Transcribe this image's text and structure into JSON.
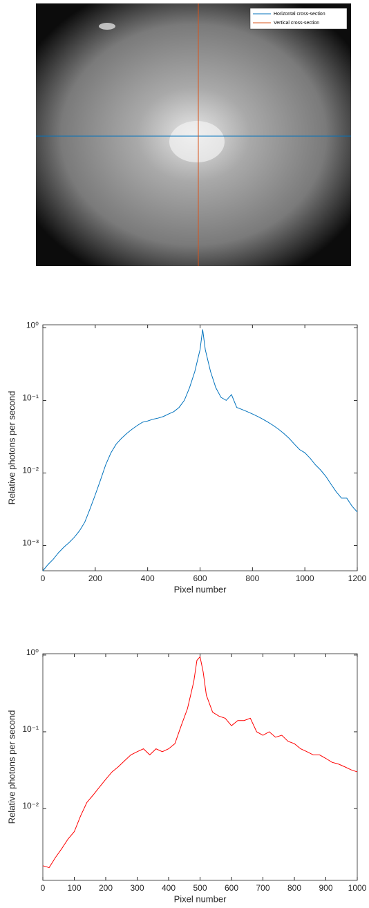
{
  "chart_data": [
    {
      "type": "image",
      "series": [
        {
          "name": "Horizontal cross-section",
          "color": "#0072bd"
        },
        {
          "name": "Vertical cross-section",
          "color": "#d95319"
        }
      ]
    },
    {
      "type": "line",
      "xlabel": "Pixel number",
      "ylabel": "Relative photons per second",
      "log_y": true,
      "xlim": [
        0,
        1200
      ],
      "xticks": [
        0,
        200,
        400,
        600,
        800,
        1000,
        1200
      ],
      "ylim": [
        0.00045,
        1.1
      ],
      "yticks": [
        {
          "value": 0.001,
          "label": "10⁻³"
        },
        {
          "value": 0.01,
          "label": "10⁻²"
        },
        {
          "value": 0.1,
          "label": "10⁻¹"
        },
        {
          "value": 1,
          "label": "10⁰"
        }
      ],
      "x": [
        0,
        20,
        40,
        60,
        80,
        100,
        120,
        140,
        160,
        180,
        200,
        220,
        240,
        260,
        280,
        300,
        320,
        340,
        360,
        380,
        400,
        420,
        440,
        460,
        480,
        500,
        520,
        540,
        560,
        580,
        600,
        610,
        620,
        640,
        660,
        680,
        700,
        720,
        740,
        760,
        780,
        800,
        820,
        840,
        860,
        880,
        900,
        920,
        940,
        960,
        980,
        1000,
        1020,
        1040,
        1060,
        1080,
        1100,
        1120,
        1140,
        1160,
        1180,
        1200
      ],
      "series": [
        {
          "color": "#0072bd",
          "values": [
            0.00045,
            0.00055,
            0.00065,
            0.0008,
            0.00095,
            0.0011,
            0.0013,
            0.0016,
            0.0021,
            0.0032,
            0.005,
            0.008,
            0.013,
            0.019,
            0.025,
            0.03,
            0.035,
            0.04,
            0.045,
            0.05,
            0.052,
            0.055,
            0.057,
            0.06,
            0.065,
            0.07,
            0.08,
            0.1,
            0.15,
            0.25,
            0.5,
            0.95,
            0.5,
            0.25,
            0.15,
            0.11,
            0.1,
            0.12,
            0.08,
            0.075,
            0.07,
            0.065,
            0.06,
            0.055,
            0.05,
            0.045,
            0.04,
            0.035,
            0.03,
            0.025,
            0.021,
            0.019,
            0.016,
            0.013,
            0.011,
            0.009,
            0.007,
            0.0055,
            0.0045,
            0.0045,
            0.0035,
            0.0029
          ]
        }
      ]
    },
    {
      "type": "line",
      "xlabel": "Pixel number",
      "ylabel": "Relative photons per second",
      "log_y": true,
      "xlim": [
        0,
        1000
      ],
      "xticks": [
        0,
        100,
        200,
        300,
        400,
        500,
        600,
        700,
        800,
        900,
        1000
      ],
      "ylim": [
        0.00116,
        1.04
      ],
      "yticks": [
        {
          "value": 0.01,
          "label": "10⁻²"
        },
        {
          "value": 0.1,
          "label": "10⁻¹"
        },
        {
          "value": 1,
          "label": "10⁰"
        }
      ],
      "x": [
        0,
        20,
        40,
        60,
        80,
        100,
        120,
        140,
        160,
        180,
        200,
        220,
        240,
        260,
        280,
        300,
        320,
        340,
        360,
        380,
        400,
        420,
        440,
        460,
        480,
        490,
        500,
        510,
        520,
        540,
        560,
        580,
        600,
        620,
        640,
        660,
        680,
        700,
        720,
        740,
        760,
        780,
        800,
        820,
        840,
        860,
        880,
        900,
        920,
        940,
        960,
        980,
        1000
      ],
      "series": [
        {
          "color": "#ff0000",
          "values": [
            0.0018,
            0.0017,
            0.0023,
            0.003,
            0.004,
            0.005,
            0.008,
            0.012,
            0.015,
            0.019,
            0.024,
            0.03,
            0.035,
            0.042,
            0.05,
            0.055,
            0.06,
            0.05,
            0.06,
            0.055,
            0.06,
            0.07,
            0.12,
            0.2,
            0.45,
            0.85,
            0.95,
            0.6,
            0.3,
            0.18,
            0.16,
            0.15,
            0.12,
            0.14,
            0.14,
            0.15,
            0.1,
            0.09,
            0.1,
            0.085,
            0.09,
            0.075,
            0.07,
            0.06,
            0.055,
            0.05,
            0.05,
            0.045,
            0.04,
            0.038,
            0.035,
            0.032,
            0.03
          ]
        }
      ]
    }
  ]
}
